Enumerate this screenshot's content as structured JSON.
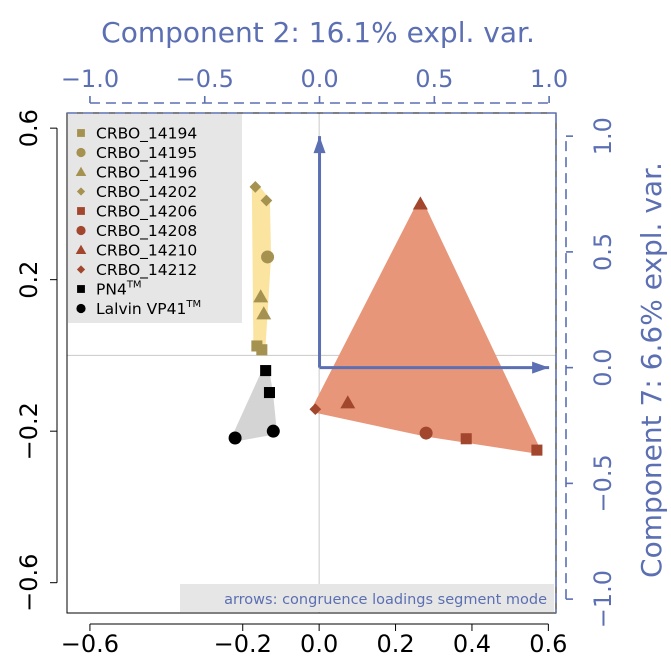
{
  "chart_data": {
    "type": "scatter",
    "top_axis_title": "Component 2: 16.1% expl. var.",
    "right_axis_title": "Component 7: 6.6% expl. var.",
    "bottom_axis": {
      "lim": [
        -0.66,
        0.62
      ],
      "ticks": [
        "-0.6",
        "-0.2",
        "0.0",
        "0.2",
        "0.4",
        "0.6"
      ]
    },
    "left_axis": {
      "lim": [
        -0.68,
        0.64
      ],
      "ticks": [
        "-0.6",
        "-0.2",
        "0.2",
        "0.6"
      ]
    },
    "top_axis": {
      "lim": [
        -1.1,
        1.03
      ],
      "ticks": [
        "-1.0",
        "-0.5",
        "0.0",
        "0.5",
        "1.0"
      ]
    },
    "right_axis": {
      "lim": [
        -1.06,
        1.1
      ],
      "ticks": [
        "-1.0",
        "-0.5",
        "0.0",
        "0.5",
        "1.0"
      ]
    },
    "reference_lines": {
      "x": 0,
      "y": 0
    },
    "legend": {
      "position": "top-left",
      "entries": [
        {
          "label": "CRBO_14194",
          "sup": "",
          "shape": "square",
          "color": "#a59250"
        },
        {
          "label": "CRBO_14195",
          "sup": "",
          "shape": "circle",
          "color": "#a59250"
        },
        {
          "label": "CRBO_14196",
          "sup": "",
          "shape": "triangle",
          "color": "#a59250"
        },
        {
          "label": "CRBO_14202",
          "sup": "",
          "shape": "diamond",
          "color": "#a59250"
        },
        {
          "label": "CRBO_14206",
          "sup": "",
          "shape": "square",
          "color": "#a2462d"
        },
        {
          "label": "CRBO_14208",
          "sup": "",
          "shape": "circle",
          "color": "#a2462d"
        },
        {
          "label": "CRBO_14210",
          "sup": "",
          "shape": "triangle",
          "color": "#a2462d"
        },
        {
          "label": "CRBO_14212",
          "sup": "",
          "shape": "diamond",
          "color": "#a2462d"
        },
        {
          "label": "PN4",
          "sup": "TM",
          "shape": "square",
          "color": "#000000"
        },
        {
          "label": "Lalvin VP41",
          "sup": "TM",
          "shape": "circle",
          "color": "#000000"
        }
      ]
    },
    "groups": [
      {
        "color": "#a59250",
        "hull_color": "#fbe4a0",
        "points": [
          {
            "x": -0.167,
            "y": 0.445,
            "shape": "diamond"
          },
          {
            "x": -0.138,
            "y": 0.409,
            "shape": "diamond"
          },
          {
            "x": -0.135,
            "y": 0.26,
            "shape": "circle"
          },
          {
            "x": -0.153,
            "y": 0.155,
            "shape": "triangle"
          },
          {
            "x": -0.145,
            "y": 0.11,
            "shape": "triangle"
          },
          {
            "x": -0.163,
            "y": 0.025,
            "shape": "square"
          },
          {
            "x": -0.15,
            "y": 0.015,
            "shape": "square"
          }
        ]
      },
      {
        "color": "#a2462d",
        "hull_color": "#e8967a",
        "points": [
          {
            "x": 0.265,
            "y": 0.4,
            "shape": "triangle"
          },
          {
            "x": -0.01,
            "y": -0.142,
            "shape": "diamond"
          },
          {
            "x": 0.075,
            "y": -0.125,
            "shape": "triangle"
          },
          {
            "x": 0.28,
            "y": -0.205,
            "shape": "circle"
          },
          {
            "x": 0.385,
            "y": -0.22,
            "shape": "square"
          },
          {
            "x": 0.57,
            "y": -0.25,
            "shape": "square"
          }
        ]
      },
      {
        "color": "#000000",
        "hull_color": "#d4d4d4",
        "points": [
          {
            "x": -0.14,
            "y": -0.04,
            "shape": "square"
          },
          {
            "x": -0.13,
            "y": -0.098,
            "shape": "square"
          },
          {
            "x": -0.12,
            "y": -0.2,
            "shape": "circle"
          },
          {
            "x": -0.22,
            "y": -0.218,
            "shape": "circle"
          }
        ]
      }
    ],
    "arrows": {
      "color": "#5b6fb2",
      "vectors": [
        {
          "label": "Component 2",
          "from": [
            0,
            0
          ],
          "to": [
            1.0,
            0
          ]
        },
        {
          "label": "Component 7",
          "from": [
            0,
            0
          ],
          "to": [
            0,
            1.0
          ]
        }
      ]
    },
    "note": "arrows: congruence loadings segment mode"
  }
}
